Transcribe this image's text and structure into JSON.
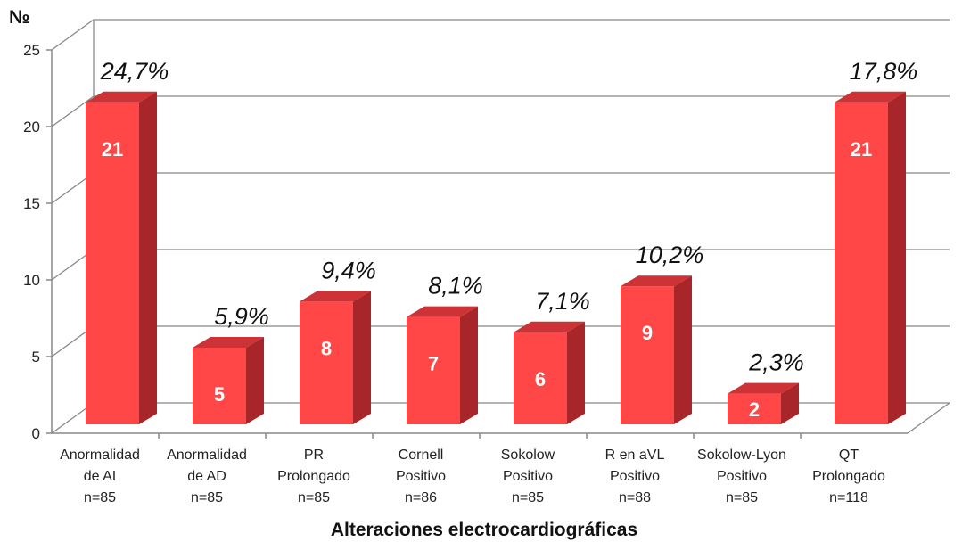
{
  "chart_data": {
    "type": "bar",
    "ylabel": "№",
    "xlabel": "Alteraciones electrocardiográficas",
    "ylim": [
      0,
      25
    ],
    "yticks": [
      0,
      5,
      10,
      15,
      20,
      25
    ],
    "grid": true,
    "colors": {
      "front": "#ff4747",
      "side": "#a8262a",
      "top": "#cc3236"
    },
    "categories": [
      [
        "Anormalidad",
        "de AI",
        "n=85"
      ],
      [
        "Anormalidad",
        "de AD",
        "n=85"
      ],
      [
        "PR",
        "Prolongado",
        "n=85"
      ],
      [
        "Cornell",
        "Positivo",
        "n=86"
      ],
      [
        "Sokolow",
        "Positivo",
        "n=85"
      ],
      [
        "R en aVL",
        "Positivo",
        "n=88"
      ],
      [
        "Sokolow-Lyon",
        "Positivo",
        "n=85"
      ],
      [
        "QT",
        "Prolongado",
        "n=118"
      ]
    ],
    "values": [
      21,
      5,
      8,
      7,
      6,
      9,
      2,
      21
    ],
    "percent_labels": [
      "24,7%",
      "5,9%",
      "9,4%",
      "8,1%",
      "7,1%",
      "10,2%",
      "2,3%",
      "17,8%"
    ]
  }
}
